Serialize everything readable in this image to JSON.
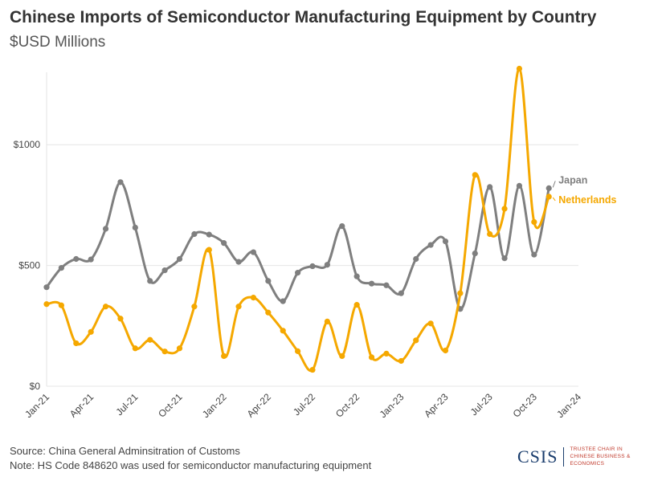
{
  "chart_data": {
    "type": "line",
    "title": "Chinese Imports of Semiconductor Manufacturing Equipment by Country",
    "subtitle": "$USD Millions",
    "xlabel": "",
    "ylabel": "",
    "ylim": [
      0,
      1300
    ],
    "y_ticks": [
      {
        "value": 0,
        "label": "$0"
      },
      {
        "value": 500,
        "label": "$500"
      },
      {
        "value": 1000,
        "label": "$1000"
      }
    ],
    "x_ticks": [
      "Jan-21",
      "Apr-21",
      "Jul-21",
      "Oct-21",
      "Jan-22",
      "Apr-22",
      "Jul-22",
      "Oct-22",
      "Jan-23",
      "Apr-23",
      "Jul-23",
      "Oct-23",
      "Jan-24"
    ],
    "x": [
      "Jan-21",
      "Feb-21",
      "Mar-21",
      "Apr-21",
      "May-21",
      "Jun-21",
      "Jul-21",
      "Aug-21",
      "Sep-21",
      "Oct-21",
      "Nov-21",
      "Dec-21",
      "Jan-22",
      "Feb-22",
      "Mar-22",
      "Apr-22",
      "May-22",
      "Jun-22",
      "Jul-22",
      "Aug-22",
      "Sep-22",
      "Oct-22",
      "Nov-22",
      "Dec-22",
      "Jan-23",
      "Feb-23",
      "Mar-23",
      "Apr-23",
      "May-23",
      "Jun-23",
      "Jul-23",
      "Aug-23",
      "Sep-23",
      "Oct-23",
      "Nov-23"
    ],
    "grid": "horizontal",
    "series": [
      {
        "name": "Japan",
        "color": "#7f7f7f",
        "values": [
          410,
          490,
          527,
          525,
          652,
          845,
          657,
          436,
          480,
          527,
          630,
          628,
          593,
          515,
          555,
          436,
          352,
          470,
          497,
          503,
          663,
          455,
          425,
          418,
          385,
          527,
          585,
          600,
          320,
          550,
          825,
          530,
          830,
          545,
          820
        ]
      },
      {
        "name": "Netherlands",
        "color": "#f5a800",
        "values": [
          340,
          335,
          178,
          225,
          330,
          280,
          157,
          192,
          144,
          157,
          330,
          565,
          125,
          330,
          367,
          305,
          230,
          145,
          68,
          268,
          125,
          337,
          120,
          135,
          105,
          190,
          260,
          148,
          385,
          875,
          630,
          735,
          1315,
          680,
          785
        ]
      }
    ]
  },
  "footer": {
    "source": "Source: China General Adminsitration of Customs",
    "note": "Note: HS Code 848620 was used for semiconductor manufacturing equipment"
  },
  "logo": {
    "mark": "CSIS",
    "tagline_1": "TRUSTEE CHAIR IN",
    "tagline_2": "CHINESE BUSINESS & ECONOMICS"
  }
}
